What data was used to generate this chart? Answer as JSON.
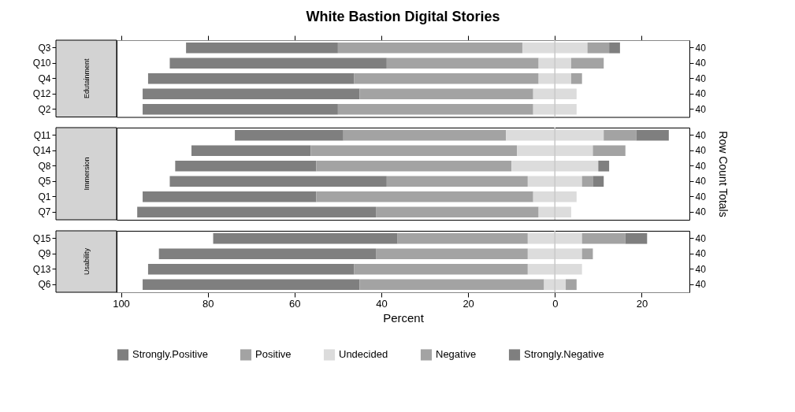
{
  "chart_data": [
    {
      "type": "bar",
      "orientation": "horizontal",
      "title": "White Bastion Digital Stories",
      "ylabel": "Edutainment",
      "categories": [
        "Q3",
        "Q10",
        "Q4",
        "Q12",
        "Q2"
      ],
      "y2_categories": [
        "40",
        "40",
        "40",
        "40",
        "40"
      ],
      "xlim": [
        -101,
        31
      ],
      "xticks": [
        {
          "value": -100,
          "label": "100"
        },
        {
          "value": -80,
          "label": "80"
        },
        {
          "value": -60,
          "label": "60"
        },
        {
          "value": -40,
          "label": "40"
        },
        {
          "value": -20,
          "label": "20"
        },
        0,
        {
          "value": 20,
          "label": "20"
        }
      ],
      "tick_labels": "y",
      "legend": "bottom",
      "ref_lines": [
        {
          "axis": "x",
          "value": 0,
          "color": "#c8c8c8"
        }
      ],
      "series": [
        {
          "name": "Strongly.Positive",
          "color": "#7f7f7f",
          "base": [
            -85,
            -88.75,
            -93.75,
            -95,
            -95
          ],
          "values": [
            35,
            50,
            47.5,
            50,
            45
          ]
        },
        {
          "name": "Positive",
          "color": "#a3a3a3",
          "base": [
            -50,
            -38.75,
            -46.25,
            -45,
            -50
          ],
          "values": [
            42.5,
            35,
            42.5,
            40,
            45
          ]
        },
        {
          "name": "Undecided",
          "color": "#dcdcdc",
          "base": [
            -7.5,
            -3.75,
            -3.75,
            -5,
            -5
          ],
          "values": [
            15,
            7.5,
            7.5,
            10,
            10
          ]
        },
        {
          "name": "Negative",
          "color": "#a3a3a3",
          "base": [
            7.5,
            3.75,
            3.75,
            null,
            null
          ],
          "values": [
            5,
            7.5,
            2.5,
            null,
            null
          ]
        },
        {
          "name": "Strongly.Negative",
          "color": "#7f7f7f",
          "base": [
            12.5,
            null,
            null,
            null,
            null
          ],
          "values": [
            2.5,
            null,
            null,
            null,
            null
          ]
        }
      ]
    },
    {
      "type": "bar",
      "orientation": "horizontal",
      "ylabel": "Immersion",
      "y2label": "Row Count Totals",
      "categories": [
        "Q11",
        "Q14",
        "Q8",
        "Q5",
        "Q1",
        "Q7"
      ],
      "y2_categories": [
        "40",
        "40",
        "40",
        "40",
        "40",
        "40"
      ],
      "xlim": [
        -101,
        31
      ],
      "tick_labels": "y",
      "legend": "bottom",
      "ref_lines": [
        {
          "axis": "x",
          "value": 0,
          "color": "#c8c8c8"
        }
      ],
      "series": [
        {
          "name": "Strongly.Positive",
          "color": "#7f7f7f",
          "base": [
            -73.75,
            -83.75,
            -87.5,
            -88.75,
            -95,
            -96.25
          ],
          "values": [
            25,
            27.5,
            32.5,
            50,
            40,
            55
          ]
        },
        {
          "name": "Positive",
          "color": "#a3a3a3",
          "base": [
            -48.75,
            -56.25,
            -55,
            -38.75,
            -55,
            -41.25
          ],
          "values": [
            37.5,
            47.5,
            45,
            32.5,
            50,
            37.5
          ]
        },
        {
          "name": "Undecided",
          "color": "#dcdcdc",
          "base": [
            -11.25,
            -8.75,
            -10,
            -6.25,
            -5,
            -3.75
          ],
          "values": [
            22.5,
            17.5,
            20,
            12.5,
            10,
            7.5
          ]
        },
        {
          "name": "Negative",
          "color": "#a3a3a3",
          "base": [
            11.25,
            8.75,
            null,
            6.25,
            null,
            null
          ],
          "values": [
            7.5,
            7.5,
            null,
            2.5,
            null,
            null
          ]
        },
        {
          "name": "Strongly.Negative",
          "color": "#7f7f7f",
          "base": [
            18.75,
            null,
            10,
            8.75,
            null,
            null
          ],
          "values": [
            7.5,
            null,
            2.5,
            2.5,
            null,
            null
          ]
        }
      ]
    },
    {
      "type": "bar",
      "orientation": "horizontal",
      "ylabel": "Usability",
      "xlabel": "Percent",
      "categories": [
        "Q15",
        "Q9",
        "Q13",
        "Q6"
      ],
      "y2_categories": [
        "40",
        "40",
        "40",
        "40"
      ],
      "xlim": [
        -101,
        31
      ],
      "xticks": [
        {
          "value": -100,
          "label": "100"
        },
        {
          "value": -80,
          "label": "80"
        },
        {
          "value": -60,
          "label": "60"
        },
        {
          "value": -40,
          "label": "40"
        },
        {
          "value": -20,
          "label": "20"
        },
        0,
        {
          "value": 20,
          "label": "20"
        }
      ],
      "legend": "bottom",
      "ref_lines": [
        {
          "axis": "x",
          "value": 0,
          "color": "#c8c8c8"
        }
      ],
      "series": [
        {
          "name": "Strongly.Positive",
          "color": "#7f7f7f",
          "base": [
            -78.75,
            -91.25,
            -93.75,
            -95
          ],
          "values": [
            42.5,
            50,
            47.5,
            50
          ]
        },
        {
          "name": "Positive",
          "color": "#a3a3a3",
          "base": [
            -36.25,
            -41.25,
            -46.25,
            -45
          ],
          "values": [
            30,
            35,
            40,
            42.5
          ]
        },
        {
          "name": "Undecided",
          "color": "#dcdcdc",
          "base": [
            -6.25,
            -6.25,
            -6.25,
            -2.5
          ],
          "values": [
            12.5,
            12.5,
            12.5,
            5
          ]
        },
        {
          "name": "Negative",
          "color": "#a3a3a3",
          "base": [
            6.25,
            6.25,
            null,
            2.5
          ],
          "values": [
            10,
            2.5,
            null,
            2.5
          ]
        },
        {
          "name": "Strongly.Negative",
          "color": "#7f7f7f",
          "base": [
            16.25,
            null,
            null,
            null
          ],
          "values": [
            5,
            null,
            null,
            null
          ]
        }
      ]
    }
  ]
}
